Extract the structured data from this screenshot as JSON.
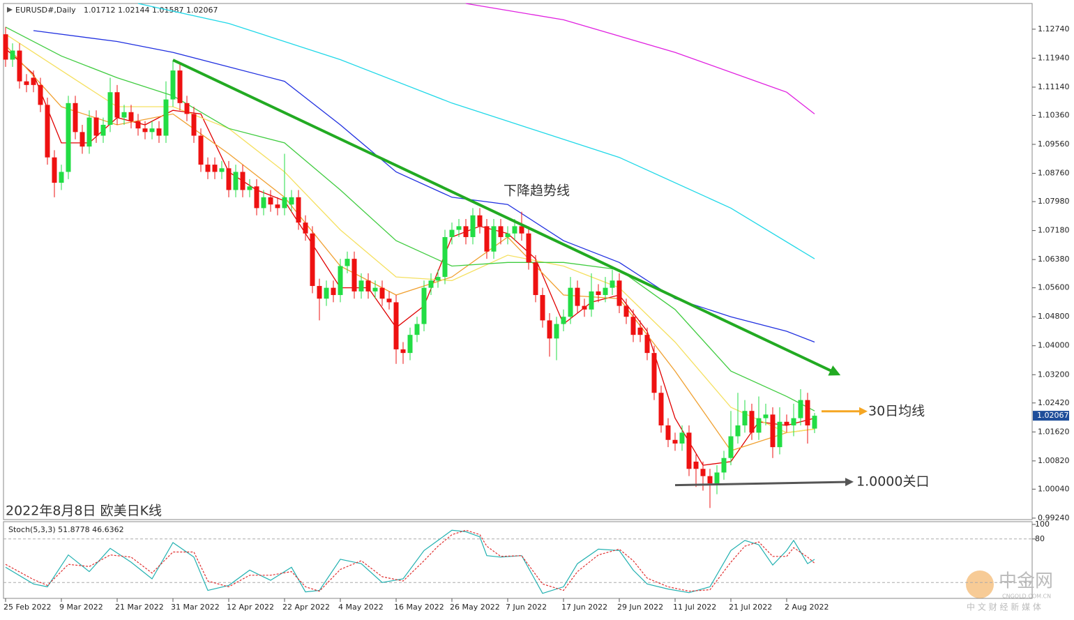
{
  "chart_data": [
    {
      "type": "candlestick",
      "title": "EURUSD#,Daily",
      "subtitle": "1.01712 1.02144 1.01587 1.02067",
      "caption": "2022年8月8日 欧美日K线",
      "up_color": "#22dd44",
      "down_color": "#ee1111",
      "open": [
        1.126,
        1.119,
        1.1215,
        1.113,
        1.114,
        1.112,
        1.1065,
        1.092,
        1.085,
        1.088,
        1.107,
        1.099,
        1.095,
        1.103,
        1.098,
        1.101,
        1.11,
        1.103,
        1.1045,
        1.102,
        1.1,
        1.099,
        1.1,
        1.098,
        1.108,
        1.116,
        1.107,
        1.104,
        1.098,
        1.09,
        1.09,
        1.088,
        1.089,
        1.083,
        1.088,
        1.083,
        1.084,
        1.078,
        1.081,
        1.079,
        1.078,
        1.079,
        1.081,
        1.074,
        1.071,
        1.0565,
        1.053,
        1.056,
        1.054,
        1.062,
        1.064,
        1.055,
        1.058,
        1.055,
        1.056,
        1.053,
        1.052,
        1.039,
        1.038,
        1.043,
        1.046,
        1.056,
        1.058,
        1.059,
        1.07,
        1.072,
        1.073,
        1.07,
        1.076,
        1.073,
        1.066,
        1.073,
        1.07,
        1.071,
        1.073,
        1.071,
        1.063,
        1.054,
        1.047,
        1.042,
        1.046,
        1.048,
        1.056,
        1.051,
        1.05,
        1.055,
        1.054,
        1.056,
        1.058,
        1.051,
        1.048,
        1.045,
        1.043,
        1.038,
        1.027,
        1.018,
        1.014,
        1.013,
        1.016,
        1.008,
        1.006,
        1.004,
        1.002,
        1.005,
        1.009,
        1.015,
        1.018,
        1.022,
        1.016,
        1.02,
        1.021,
        1.012,
        1.019,
        1.018,
        1.02,
        1.025,
        1.01712
      ],
      "high": [
        1.128,
        1.1235,
        1.1235,
        1.115,
        1.116,
        1.114,
        1.1085,
        1.094,
        1.09,
        1.109,
        1.109,
        1.101,
        1.105,
        1.105,
        1.103,
        1.114,
        1.112,
        1.1065,
        1.1065,
        1.104,
        1.102,
        1.102,
        1.102,
        1.113,
        1.1185,
        1.118,
        1.109,
        1.106,
        1.1,
        1.092,
        1.092,
        1.091,
        1.091,
        1.09,
        1.09,
        1.086,
        1.086,
        1.083,
        1.083,
        1.081,
        1.093,
        1.083,
        1.083,
        1.076,
        1.073,
        1.0585,
        1.058,
        1.058,
        1.064,
        1.066,
        1.066,
        1.06,
        1.06,
        1.058,
        1.058,
        1.055,
        1.054,
        1.041,
        1.045,
        1.048,
        1.058,
        1.06,
        1.061,
        1.072,
        1.074,
        1.075,
        1.075,
        1.078,
        1.078,
        1.075,
        1.075,
        1.075,
        1.073,
        1.075,
        1.077,
        1.073,
        1.065,
        1.056,
        1.049,
        1.048,
        1.05,
        1.059,
        1.058,
        1.053,
        1.06,
        1.057,
        1.059,
        1.061,
        1.06,
        1.053,
        1.05,
        1.047,
        1.045,
        1.04,
        1.029,
        1.02,
        1.016,
        1.018,
        1.018,
        1.01,
        1.008,
        1.006,
        1.007,
        1.011,
        1.022,
        1.027,
        1.025,
        1.024,
        1.026,
        1.024,
        1.023,
        1.023,
        1.021,
        1.024,
        1.028,
        1.027,
        1.02144
      ],
      "low": [
        1.117,
        1.117,
        1.111,
        1.11,
        1.11,
        1.1045,
        1.09,
        1.081,
        1.083,
        1.086,
        1.097,
        1.093,
        1.093,
        1.096,
        1.096,
        1.099,
        1.101,
        1.101,
        1.1,
        1.098,
        1.097,
        1.097,
        1.096,
        1.096,
        1.106,
        1.105,
        1.102,
        1.096,
        1.088,
        1.086,
        1.086,
        1.086,
        1.081,
        1.081,
        1.081,
        1.081,
        1.076,
        1.076,
        1.077,
        1.076,
        1.076,
        1.077,
        1.072,
        1.069,
        1.0545,
        1.047,
        1.051,
        1.052,
        1.052,
        1.06,
        1.053,
        1.053,
        1.053,
        1.053,
        1.051,
        1.05,
        1.035,
        1.035,
        1.036,
        1.041,
        1.044,
        1.054,
        1.056,
        1.057,
        1.068,
        1.07,
        1.068,
        1.068,
        1.071,
        1.064,
        1.064,
        1.068,
        1.068,
        1.069,
        1.069,
        1.061,
        1.052,
        1.045,
        1.037,
        1.036,
        1.044,
        1.046,
        1.049,
        1.048,
        1.048,
        1.052,
        1.052,
        1.054,
        1.049,
        1.046,
        1.041,
        1.041,
        1.036,
        1.025,
        1.016,
        1.012,
        1.011,
        1.011,
        1.004,
        1.001,
        1.0,
        0.9952,
        0.999,
        1.003,
        1.007,
        1.013,
        1.016,
        1.014,
        1.014,
        1.018,
        1.009,
        1.01,
        1.016,
        1.015,
        1.018,
        1.013,
        1.01587
      ],
      "close": [
        1.119,
        1.1215,
        1.113,
        1.112,
        1.112,
        1.1065,
        1.092,
        1.085,
        1.088,
        1.107,
        1.099,
        1.095,
        1.103,
        1.098,
        1.101,
        1.11,
        1.103,
        1.1045,
        1.102,
        1.1,
        1.099,
        1.1,
        1.098,
        1.108,
        1.116,
        1.107,
        1.104,
        1.098,
        1.09,
        1.088,
        1.088,
        1.089,
        1.083,
        1.088,
        1.083,
        1.084,
        1.078,
        1.081,
        1.079,
        1.078,
        1.081,
        1.081,
        1.074,
        1.071,
        1.0565,
        1.053,
        1.056,
        1.054,
        1.062,
        1.064,
        1.055,
        1.058,
        1.055,
        1.056,
        1.053,
        1.052,
        1.039,
        1.038,
        1.043,
        1.046,
        1.056,
        1.058,
        1.059,
        1.07,
        1.072,
        1.073,
        1.07,
        1.076,
        1.073,
        1.066,
        1.073,
        1.07,
        1.071,
        1.073,
        1.071,
        1.063,
        1.054,
        1.047,
        1.042,
        1.046,
        1.048,
        1.056,
        1.051,
        1.05,
        1.055,
        1.054,
        1.056,
        1.058,
        1.051,
        1.048,
        1.043,
        1.043,
        1.038,
        1.027,
        1.018,
        1.014,
        1.013,
        1.016,
        1.006,
        1.006,
        1.004,
        1.002,
        1.005,
        1.009,
        1.015,
        1.018,
        1.022,
        1.016,
        1.02,
        1.021,
        1.012,
        1.019,
        1.018,
        1.02,
        1.025,
        1.018,
        1.02067
      ],
      "xticks": [
        {
          "value": 0,
          "label": "25 Feb 2022"
        },
        {
          "value": 8,
          "label": "9 Mar 2022"
        },
        {
          "value": 16,
          "label": "21 Mar 2022"
        },
        {
          "value": 24,
          "label": "31 Mar 2022"
        },
        {
          "value": 32,
          "label": "12 Apr 2022"
        },
        {
          "value": 40,
          "label": "22 Apr 2022"
        },
        {
          "value": 48,
          "label": "4 May 2022"
        },
        {
          "value": 56,
          "label": "16 May 2022"
        },
        {
          "value": 64,
          "label": "26 May 2022"
        },
        {
          "value": 72,
          "label": "7 Jun 2022"
        },
        {
          "value": 80,
          "label": "17 Jun 2022"
        },
        {
          "value": 88,
          "label": "29 Jun 2022"
        },
        {
          "value": 96,
          "label": "11 Jul 2022"
        },
        {
          "value": 104,
          "label": "21 Jul 2022"
        },
        {
          "value": 112,
          "label": "2 Aug 2022"
        }
      ],
      "ylim": [
        0.992,
        1.1345
      ],
      "yticks": [
        {
          "value": 1.1274,
          "label": "1.12740"
        },
        {
          "value": 1.1194,
          "label": "1.11940"
        },
        {
          "value": 1.1114,
          "label": "1.11140"
        },
        {
          "value": 1.1036,
          "label": "1.10360"
        },
        {
          "value": 1.0956,
          "label": "1.09560"
        },
        {
          "value": 1.0876,
          "label": "1.08760"
        },
        {
          "value": 1.0798,
          "label": "1.07980"
        },
        {
          "value": 1.0718,
          "label": "1.07180"
        },
        {
          "value": 1.0638,
          "label": "1.06380"
        },
        {
          "value": 1.056,
          "label": "1.05600"
        },
        {
          "value": 1.048,
          "label": "1.04800"
        },
        {
          "value": 1.04,
          "label": "1.04000"
        },
        {
          "value": 1.032,
          "label": "1.03200"
        },
        {
          "value": 1.0242,
          "label": "1.02420"
        },
        {
          "value": 1.0162,
          "label": "1.01620"
        },
        {
          "value": 1.0082,
          "label": "1.00820"
        },
        {
          "value": 1.0004,
          "label": "1.00040"
        },
        {
          "value": 0.9924,
          "label": "0.99240"
        }
      ],
      "last_price": {
        "value": 1.02067,
        "label": "1.02067"
      },
      "series": [
        {
          "color": "#e00000",
          "x": [
            0,
            4,
            8,
            12,
            16,
            20,
            24,
            28,
            32,
            36,
            40,
            44,
            48,
            52,
            56,
            60,
            64,
            68,
            72,
            76,
            80,
            84,
            88,
            92,
            96,
            100,
            104,
            108,
            112,
            116
          ],
          "values": [
            1.122,
            1.115,
            1.096,
            1.096,
            1.103,
            1.101,
            1.105,
            1.104,
            1.088,
            1.083,
            1.08,
            1.068,
            1.056,
            1.056,
            1.045,
            1.051,
            1.07,
            1.073,
            1.071,
            1.064,
            1.046,
            1.052,
            1.054,
            1.044,
            1.02,
            1.007,
            1.008,
            1.019,
            1.018,
            1.02
          ]
        },
        {
          "color": "#f0a030",
          "x": [
            0,
            8,
            16,
            24,
            32,
            40,
            48,
            56,
            64,
            72,
            80,
            88,
            96,
            104,
            112,
            116
          ],
          "values": [
            1.123,
            1.106,
            1.101,
            1.104,
            1.093,
            1.081,
            1.062,
            1.054,
            1.059,
            1.07,
            1.054,
            1.053,
            1.033,
            1.011,
            1.016,
            1.017
          ]
        },
        {
          "color": "#f5e060",
          "x": [
            0,
            8,
            16,
            24,
            32,
            40,
            48,
            56,
            64,
            72,
            80,
            88,
            96,
            104,
            112,
            116
          ],
          "values": [
            1.126,
            1.116,
            1.106,
            1.106,
            1.1,
            1.088,
            1.072,
            1.059,
            1.058,
            1.065,
            1.062,
            1.056,
            1.041,
            1.023,
            1.016,
            1.017
          ]
        },
        {
          "color": "#40cc40",
          "x": [
            0,
            8,
            16,
            24,
            32,
            40,
            48,
            56,
            64,
            72,
            80,
            88,
            96,
            104,
            112,
            116
          ],
          "values": [
            1.128,
            1.12,
            1.114,
            1.109,
            1.1,
            1.096,
            1.083,
            1.069,
            1.062,
            1.063,
            1.063,
            1.061,
            1.05,
            1.033,
            1.026,
            1.022
          ]
        },
        {
          "color": "#2030e0",
          "x": [
            4,
            16,
            24,
            32,
            40,
            48,
            56,
            64,
            72,
            80,
            88,
            96,
            104,
            112,
            116
          ],
          "values": [
            1.127,
            1.124,
            1.121,
            1.117,
            1.113,
            1.101,
            1.088,
            1.081,
            1.079,
            1.069,
            1.063,
            1.053,
            1.048,
            1.044,
            1.041
          ]
        },
        {
          "color": "#20d8e8",
          "x": [
            19,
            32,
            48,
            64,
            72,
            88,
            104,
            116
          ],
          "values": [
            1.1345,
            1.129,
            1.119,
            1.107,
            1.102,
            1.092,
            1.078,
            1.064
          ]
        },
        {
          "color": "#e020e0",
          "x": [
            66,
            80,
            96,
            112,
            116
          ],
          "values": [
            1.1345,
            1.13,
            1.121,
            1.11,
            1.104
          ]
        }
      ],
      "trend_lines": [
        {
          "color": "#22aa22",
          "x": [
            24,
            119
          ],
          "y": [
            1.1189,
            1.0325
          ]
        },
        {
          "color": "#555555",
          "x": [
            96,
            121
          ],
          "y": [
            1.0015,
            1.0024
          ]
        },
        {
          "color": "#f5a623",
          "x": [
            117,
            123
          ],
          "y": [
            1.0219,
            1.0219
          ]
        }
      ],
      "annotations": [
        "下降趋势线",
        "30日均线",
        "1.0000关口"
      ]
    },
    {
      "type": "line",
      "title": "Stoch(5,3,3) 51.8778 46.6362",
      "ylim": [
        0,
        100
      ],
      "yticks": [
        100,
        80
      ],
      "levels": [
        80,
        20
      ],
      "series": [
        {
          "color": "#20b0b0",
          "dash": false,
          "x": [
            0,
            4,
            6,
            9,
            12,
            15,
            18,
            21,
            24,
            27,
            29,
            32,
            35,
            38,
            41,
            43,
            45,
            48,
            51,
            54,
            57,
            60,
            62,
            64,
            66,
            68,
            69,
            71,
            74,
            77,
            80,
            82,
            85,
            88,
            90,
            92,
            95,
            98,
            101,
            104,
            106,
            108,
            110,
            112,
            113,
            115,
            116
          ],
          "values": [
            41,
            18,
            14,
            58,
            35,
            67,
            48,
            25,
            75,
            55,
            9,
            16,
            37,
            23,
            41,
            7,
            9,
            52,
            46,
            20,
            25,
            64,
            78,
            92,
            90,
            83,
            57,
            55,
            57,
            5,
            14,
            46,
            66,
            64,
            37,
            18,
            11,
            6,
            14,
            64,
            78,
            72,
            44,
            64,
            78,
            46,
            51.8778
          ]
        },
        {
          "color": "#e03030",
          "dash": true,
          "x": [
            0,
            4,
            6,
            9,
            12,
            15,
            18,
            21,
            24,
            27,
            29,
            32,
            35,
            38,
            41,
            43,
            45,
            48,
            51,
            54,
            57,
            60,
            62,
            64,
            66,
            68,
            69,
            71,
            74,
            77,
            80,
            82,
            85,
            88,
            90,
            92,
            95,
            98,
            101,
            104,
            106,
            108,
            110,
            112,
            113,
            115,
            116
          ],
          "values": [
            45,
            24,
            16,
            45,
            42,
            58,
            55,
            33,
            62,
            62,
            22,
            14,
            30,
            30,
            35,
            14,
            8,
            38,
            50,
            28,
            22,
            50,
            70,
            86,
            92,
            86,
            70,
            56,
            57,
            18,
            9,
            35,
            58,
            66,
            50,
            26,
            14,
            8,
            10,
            48,
            70,
            76,
            56,
            56,
            68,
            55,
            46.6362
          ]
        }
      ]
    }
  ],
  "watermark": {
    "name": "中金网",
    "domain": "CNGOLD.COM.CN",
    "slogan": "中 文 财 经 新 媒 体"
  }
}
